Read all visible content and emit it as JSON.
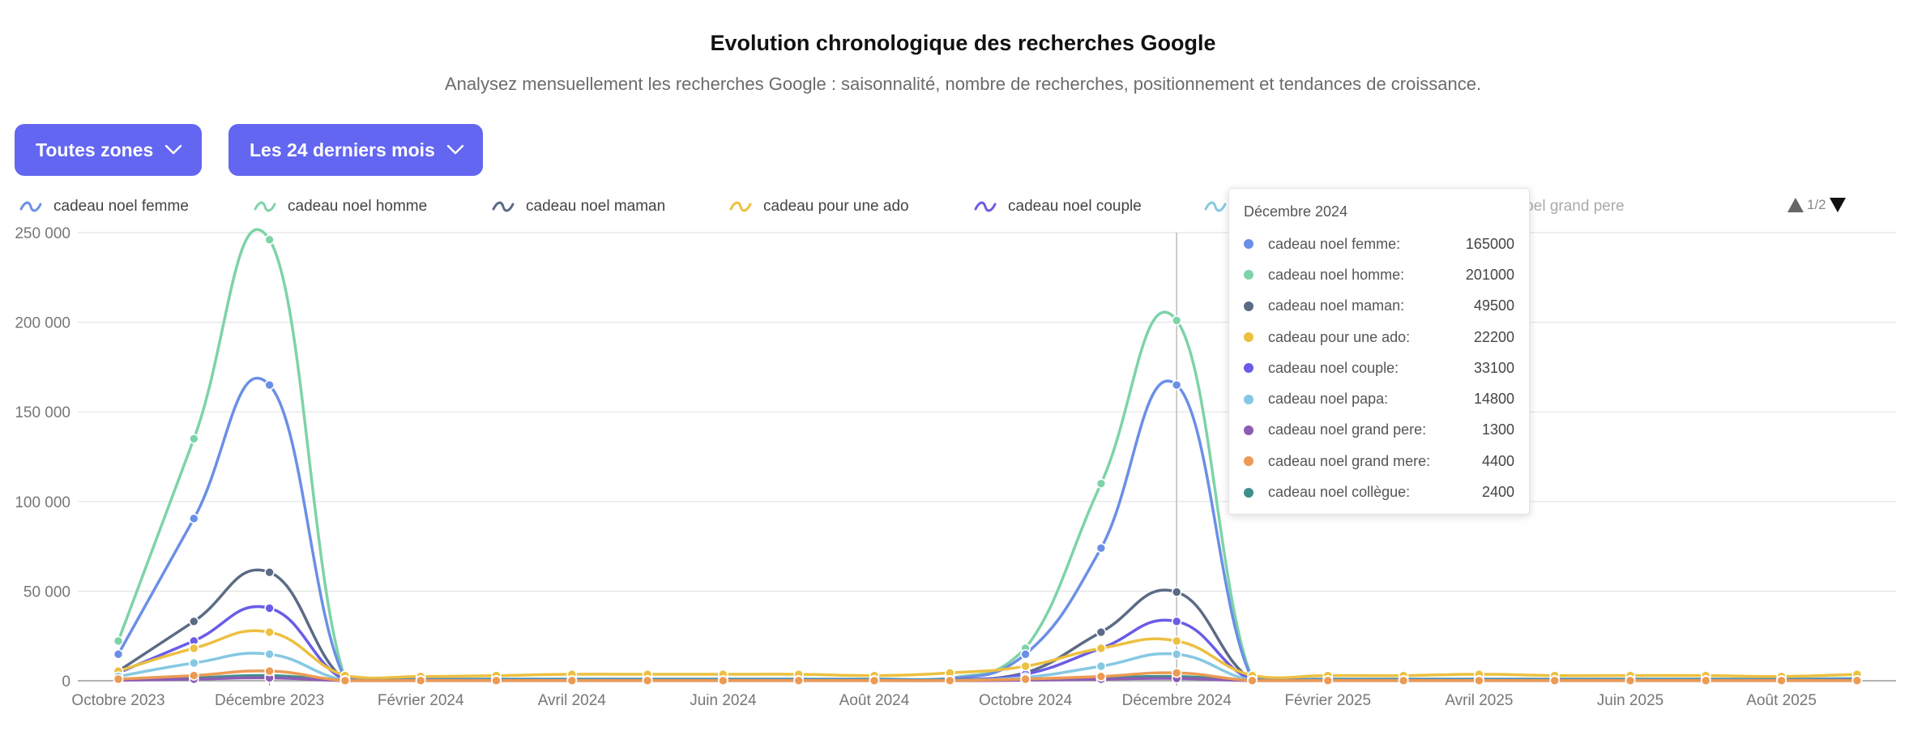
{
  "header": {
    "title": "Evolution chronologique des recherches Google",
    "subtitle": "Analysez mensuellement les recherches Google : saisonnalité, nombre de recherches, positionnement et tendances de croissance."
  },
  "filters": {
    "zone_label": "Toutes zones",
    "period_label": "Les 24 derniers mois"
  },
  "legend": {
    "items": [
      {
        "label": "cadeau noel femme",
        "color": "#6b8fe6"
      },
      {
        "label": "cadeau noel homme",
        "color": "#7dd3a8"
      },
      {
        "label": "cadeau noel maman",
        "color": "#5b6b85"
      },
      {
        "label": "cadeau pour une ado",
        "color": "#ecc040"
      },
      {
        "label": "cadeau noel couple",
        "color": "#6a5ce6"
      },
      {
        "label": "cadeau noel papa",
        "color": "#86c8e3"
      },
      {
        "label": "cadeau noel grand pere",
        "color": "#8c5cb4"
      }
    ],
    "pager": "1/2"
  },
  "tooltip": {
    "title": "Décembre 2024",
    "rows": [
      {
        "label": "cadeau noel femme:",
        "value": "165000",
        "color": "#6b8fe6"
      },
      {
        "label": "cadeau noel homme:",
        "value": "201000",
        "color": "#7dd3a8"
      },
      {
        "label": "cadeau noel maman:",
        "value": "49500",
        "color": "#5b6b85"
      },
      {
        "label": "cadeau pour une ado:",
        "value": "22200",
        "color": "#ecc040"
      },
      {
        "label": "cadeau noel couple:",
        "value": "33100",
        "color": "#6a5ce6"
      },
      {
        "label": "cadeau noel papa:",
        "value": "14800",
        "color": "#86c8e3"
      },
      {
        "label": "cadeau noel grand pere:",
        "value": "1300",
        "color": "#8c5cb4"
      },
      {
        "label": "cadeau noel grand mere:",
        "value": "4400",
        "color": "#ec9a54"
      },
      {
        "label": "cadeau noel collègue:",
        "value": "2400",
        "color": "#3f8f8c"
      }
    ]
  },
  "chart_data": {
    "type": "line",
    "title": "Evolution chronologique des recherches Google",
    "xlabel": "",
    "ylabel": "",
    "ylim": [
      0,
      250000
    ],
    "yticks": [
      0,
      50000,
      100000,
      150000,
      200000,
      250000
    ],
    "ytick_labels": [
      "0",
      "50 000",
      "100 000",
      "150 000",
      "200 000",
      "250 000"
    ],
    "x_labels": [
      "Octobre 2023",
      "Décembre 2023",
      "Février 2024",
      "Avril 2024",
      "Juin 2024",
      "Août 2024",
      "Octobre 2024",
      "Décembre 2024",
      "Février 2025",
      "Avril 2025",
      "Juin 2025",
      "Août 2025"
    ],
    "grid": true,
    "x": [
      "Octobre 2023",
      "Novembre 2023",
      "Décembre 2023",
      "Janvier 2024",
      "Février 2024",
      "Mars 2024",
      "Avril 2024",
      "Mai 2024",
      "Juin 2024",
      "Juillet 2024",
      "Août 2024",
      "Septembre 2024",
      "Octobre 2024",
      "Novembre 2024",
      "Décembre 2024",
      "Janvier 2025",
      "Février 2025",
      "Mars 2025",
      "Avril 2025",
      "Mai 2025",
      "Juin 2025",
      "Juillet 2025",
      "Août 2025",
      "Septembre 2025"
    ],
    "series": [
      {
        "name": "cadeau noel femme",
        "color": "#6b8fe6",
        "values": [
          14800,
          90500,
          165000,
          1000,
          800,
          800,
          800,
          800,
          800,
          800,
          800,
          1000,
          14800,
          74000,
          165000,
          1000,
          800,
          800,
          800,
          800,
          800,
          800,
          800,
          1000
        ]
      },
      {
        "name": "cadeau noel homme",
        "color": "#7dd3a8",
        "values": [
          22200,
          135000,
          246000,
          1300,
          1000,
          1000,
          1000,
          1000,
          1000,
          1000,
          1000,
          1300,
          18100,
          110000,
          201000,
          1300,
          1000,
          1000,
          1000,
          1000,
          1000,
          1000,
          1000,
          1300
        ]
      },
      {
        "name": "cadeau noel maman",
        "color": "#5b6b85",
        "values": [
          5400,
          33100,
          60500,
          500,
          400,
          400,
          400,
          400,
          400,
          400,
          400,
          500,
          4400,
          27100,
          49500,
          500,
          400,
          400,
          400,
          400,
          400,
          400,
          400,
          500
        ]
      },
      {
        "name": "cadeau pour une ado",
        "color": "#ecc040",
        "values": [
          5400,
          18100,
          27100,
          2900,
          2400,
          2900,
          3600,
          3600,
          3600,
          3600,
          2900,
          4400,
          8100,
          18100,
          22200,
          2900,
          2900,
          2900,
          3600,
          2900,
          2900,
          2900,
          2400,
          3600
        ]
      },
      {
        "name": "cadeau noel couple",
        "color": "#6a5ce6",
        "values": [
          4400,
          22200,
          40500,
          400,
          300,
          300,
          300,
          300,
          300,
          300,
          300,
          400,
          3600,
          18100,
          33100,
          400,
          300,
          300,
          300,
          300,
          300,
          300,
          300,
          400
        ]
      },
      {
        "name": "cadeau noel papa",
        "color": "#86c8e3",
        "values": [
          2400,
          9900,
          14800,
          300,
          200,
          200,
          200,
          200,
          200,
          200,
          200,
          300,
          1900,
          8100,
          14800,
          300,
          200,
          200,
          200,
          200,
          200,
          200,
          200,
          300
        ]
      },
      {
        "name": "cadeau noel grand pere",
        "color": "#8c5cb4",
        "values": [
          300,
          900,
          1600,
          50,
          50,
          50,
          50,
          50,
          50,
          50,
          50,
          50,
          300,
          900,
          1300,
          50,
          50,
          50,
          50,
          50,
          50,
          50,
          50,
          50
        ]
      },
      {
        "name": "cadeau noel grand mere",
        "color": "#ec9a54",
        "values": [
          900,
          2900,
          5400,
          100,
          100,
          100,
          100,
          100,
          100,
          100,
          100,
          100,
          900,
          2400,
          4400,
          100,
          100,
          100,
          100,
          100,
          100,
          100,
          100,
          100
        ]
      },
      {
        "name": "cadeau noel collègue",
        "color": "#3f8f8c",
        "values": [
          500,
          1600,
          2900,
          300,
          300,
          300,
          300,
          300,
          300,
          300,
          300,
          300,
          500,
          1600,
          2400,
          300,
          300,
          300,
          300,
          300,
          300,
          300,
          300,
          300
        ]
      }
    ],
    "hover_index": 14
  }
}
